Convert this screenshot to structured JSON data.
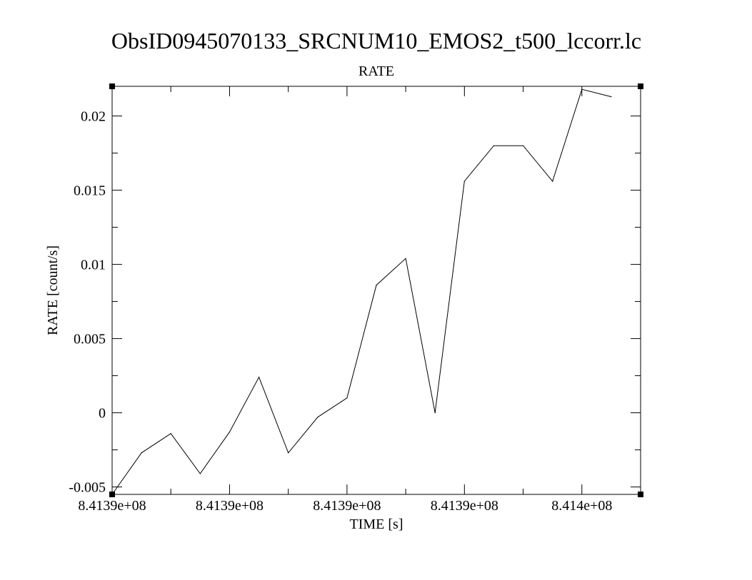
{
  "chart_data": {
    "type": "line",
    "title": "ObsID0945070133_SRCNUM10_EMOS2_t500_lccorr.lc",
    "subtitle": "RATE",
    "xlabel": "TIME [s]",
    "ylabel": "RATE [count/s]",
    "xlim": [
      841387500,
      841396500
    ],
    "ylim": [
      -0.0055,
      0.022
    ],
    "x_ticks": [
      {
        "value": 841387500,
        "label": "8.4139e+08"
      },
      {
        "value": 841389500,
        "label": "8.4139e+08"
      },
      {
        "value": 841391500,
        "label": "8.4139e+08"
      },
      {
        "value": 841393500,
        "label": "8.4139e+08"
      },
      {
        "value": 841395500,
        "label": "8.414e+08"
      }
    ],
    "x_minor_ticks": [
      841388500,
      841390500,
      841392500,
      841394500
    ],
    "y_ticks": [
      {
        "value": -0.005,
        "label": "-0.005"
      },
      {
        "value": 0,
        "label": "0"
      },
      {
        "value": 0.005,
        "label": "0.005"
      },
      {
        "value": 0.01,
        "label": "0.01"
      },
      {
        "value": 0.015,
        "label": "0.015"
      },
      {
        "value": 0.02,
        "label": "0.02"
      }
    ],
    "y_minor_ticks": [
      -0.0025,
      0.0025,
      0.0075,
      0.0125,
      0.0175
    ],
    "grid": false,
    "series": [
      {
        "x": [
          841387500,
          841388000,
          841388500,
          841389000,
          841389500,
          841390000,
          841390500,
          841391000,
          841391500,
          841392000,
          841392500,
          841393000,
          841393500,
          841394000,
          841394500,
          841395000,
          841395500,
          841396000
        ],
        "values": [
          -0.0055,
          -0.0027,
          -0.0014,
          -0.0041,
          -0.0013,
          0.0024,
          -0.0027,
          -0.0003,
          0.001,
          0.0086,
          0.0104,
          0.0,
          0.0156,
          0.018,
          0.018,
          0.0156,
          0.0218,
          0.0213
        ]
      }
    ]
  }
}
